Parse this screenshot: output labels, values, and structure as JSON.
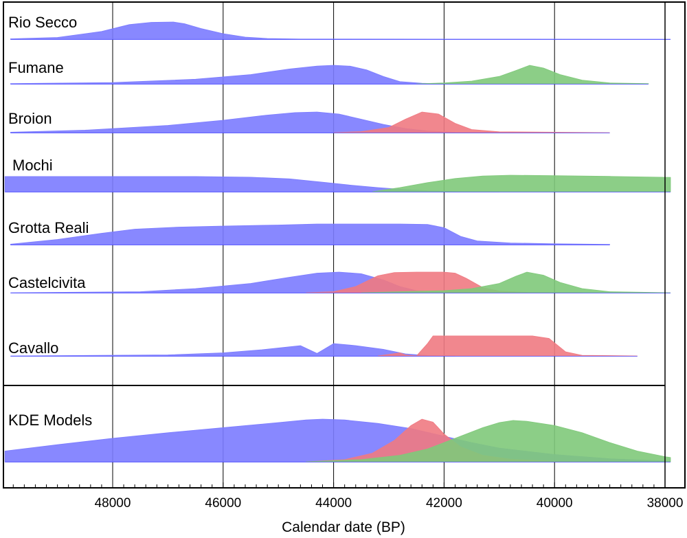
{
  "chart_data": {
    "type": "area",
    "xlabel": "Calendar date (BP)",
    "x_reversed": true,
    "xlim": [
      49950,
      37850
    ],
    "x_ticks": [
      48000,
      46000,
      44000,
      42000,
      40000,
      38000
    ],
    "x_tick_labels": [
      "48000",
      "46000",
      "44000",
      "42000",
      "40000",
      "38000"
    ],
    "gridlines": "vertical at major ticks",
    "colors": {
      "blue": "#7b7bff",
      "red": "#f07a82",
      "green": "#7fc97a"
    },
    "panels": [
      {
        "label": "Rio Secco",
        "series": [
          {
            "color": "blue",
            "points": [
              [
                49850,
                0.02
              ],
              [
                49000,
                0.1
              ],
              [
                48200,
                0.45
              ],
              [
                47700,
                0.85
              ],
              [
                47300,
                0.98
              ],
              [
                46900,
                1.0
              ],
              [
                46700,
                0.9
              ],
              [
                46400,
                0.62
              ],
              [
                46000,
                0.32
              ],
              [
                45600,
                0.12
              ],
              [
                45200,
                0.04
              ],
              [
                44600,
                0.01
              ],
              [
                37900,
                0.0
              ]
            ]
          }
        ]
      },
      {
        "label": "Fumane",
        "series": [
          {
            "color": "blue",
            "points": [
              [
                49850,
                0.01
              ],
              [
                48000,
                0.07
              ],
              [
                46500,
                0.25
              ],
              [
                45500,
                0.5
              ],
              [
                44800,
                0.8
              ],
              [
                44300,
                0.96
              ],
              [
                44000,
                1.0
              ],
              [
                43700,
                0.95
              ],
              [
                43400,
                0.75
              ],
              [
                43100,
                0.4
              ],
              [
                42800,
                0.12
              ],
              [
                42400,
                0.03
              ],
              [
                42000,
                0.0
              ]
            ]
          },
          {
            "color": "green",
            "points": [
              [
                42500,
                0.0
              ],
              [
                42000,
                0.05
              ],
              [
                41500,
                0.15
              ],
              [
                41000,
                0.4
              ],
              [
                40700,
                0.72
              ],
              [
                40450,
                1.0
              ],
              [
                40200,
                0.85
              ],
              [
                39900,
                0.5
              ],
              [
                39500,
                0.2
              ],
              [
                39000,
                0.05
              ],
              [
                38300,
                0.01
              ]
            ]
          }
        ]
      },
      {
        "label": "Broion",
        "series": [
          {
            "color": "blue",
            "points": [
              [
                49850,
                0.02
              ],
              [
                48500,
                0.12
              ],
              [
                47000,
                0.35
              ],
              [
                46000,
                0.6
              ],
              [
                45200,
                0.85
              ],
              [
                44700,
                0.97
              ],
              [
                44300,
                1.0
              ],
              [
                43900,
                0.9
              ],
              [
                43500,
                0.65
              ],
              [
                43100,
                0.4
              ],
              [
                42700,
                0.2
              ],
              [
                42300,
                0.08
              ],
              [
                41800,
                0.02
              ],
              [
                40000,
                0.0
              ]
            ]
          },
          {
            "color": "red",
            "points": [
              [
                44000,
                0.0
              ],
              [
                43500,
                0.05
              ],
              [
                43000,
                0.25
              ],
              [
                42700,
                0.65
              ],
              [
                42400,
                1.0
              ],
              [
                42100,
                0.9
              ],
              [
                41800,
                0.45
              ],
              [
                41500,
                0.15
              ],
              [
                41000,
                0.04
              ],
              [
                39000,
                0.0
              ]
            ]
          }
        ]
      },
      {
        "label": "Mochi",
        "series": [
          {
            "color": "blue",
            "points": [
              [
                49950,
                0.92
              ],
              [
                48000,
                0.92
              ],
              [
                46500,
                0.92
              ],
              [
                45500,
                0.88
              ],
              [
                44800,
                0.78
              ],
              [
                44200,
                0.58
              ],
              [
                43700,
                0.4
              ],
              [
                43200,
                0.25
              ],
              [
                42800,
                0.15
              ],
              [
                42300,
                0.06
              ],
              [
                41700,
                0.01
              ],
              [
                41000,
                0.0
              ]
            ]
          },
          {
            "color": "green",
            "points": [
              [
                43300,
                0.0
              ],
              [
                42800,
                0.25
              ],
              [
                42300,
                0.55
              ],
              [
                41800,
                0.8
              ],
              [
                41300,
                0.95
              ],
              [
                40800,
                1.0
              ],
              [
                40000,
                0.97
              ],
              [
                39000,
                0.93
              ],
              [
                37900,
                0.87
              ]
            ]
          }
        ]
      },
      {
        "label": "Grotta Reali",
        "series": [
          {
            "color": "blue",
            "points": [
              [
                49850,
                0.02
              ],
              [
                49000,
                0.25
              ],
              [
                48200,
                0.55
              ],
              [
                47600,
                0.75
              ],
              [
                46800,
                0.85
              ],
              [
                46000,
                0.9
              ],
              [
                45000,
                0.95
              ],
              [
                44300,
                1.0
              ],
              [
                42800,
                1.0
              ],
              [
                42300,
                0.98
              ],
              [
                42000,
                0.82
              ],
              [
                41700,
                0.4
              ],
              [
                41400,
                0.18
              ],
              [
                40800,
                0.08
              ],
              [
                40000,
                0.04
              ],
              [
                39000,
                0.01
              ]
            ]
          }
        ]
      },
      {
        "label": "Castelcivita",
        "series": [
          {
            "color": "blue",
            "points": [
              [
                49850,
                0.0
              ],
              [
                47500,
                0.05
              ],
              [
                46500,
                0.2
              ],
              [
                45500,
                0.45
              ],
              [
                44800,
                0.75
              ],
              [
                44300,
                0.95
              ],
              [
                43900,
                1.0
              ],
              [
                43500,
                0.92
              ],
              [
                43100,
                0.62
              ],
              [
                42800,
                0.3
              ],
              [
                42500,
                0.1
              ],
              [
                42000,
                0.02
              ],
              [
                41500,
                0.0
              ]
            ]
          },
          {
            "color": "red",
            "points": [
              [
                44500,
                0.0
              ],
              [
                44000,
                0.05
              ],
              [
                43600,
                0.3
              ],
              [
                43200,
                0.82
              ],
              [
                42900,
                0.98
              ],
              [
                42500,
                1.0
              ],
              [
                42000,
                1.0
              ],
              [
                41800,
                0.95
              ],
              [
                41600,
                0.7
              ],
              [
                41300,
                0.25
              ],
              [
                41000,
                0.08
              ],
              [
                40500,
                0.02
              ],
              [
                39500,
                0.0
              ]
            ]
          },
          {
            "color": "green",
            "points": [
              [
                43500,
                0.0
              ],
              [
                42800,
                0.05
              ],
              [
                42000,
                0.1
              ],
              [
                41500,
                0.2
              ],
              [
                41000,
                0.45
              ],
              [
                40700,
                0.8
              ],
              [
                40500,
                1.0
              ],
              [
                40200,
                0.85
              ],
              [
                39900,
                0.5
              ],
              [
                39500,
                0.2
              ],
              [
                39000,
                0.05
              ],
              [
                37900,
                0.0
              ]
            ]
          }
        ]
      },
      {
        "label": "Cavallo",
        "series": [
          {
            "color": "blue",
            "points": [
              [
                49850,
                0.0
              ],
              [
                47000,
                0.05
              ],
              [
                46000,
                0.15
              ],
              [
                45300,
                0.3
              ],
              [
                44600,
                0.5
              ],
              [
                44300,
                0.12
              ],
              [
                44000,
                0.6
              ],
              [
                43600,
                0.5
              ],
              [
                43100,
                0.32
              ],
              [
                42700,
                0.1
              ],
              [
                42300,
                0.02
              ],
              [
                41800,
                0.0
              ]
            ]
          },
          {
            "color": "red",
            "points": [
              [
                43200,
                0.0
              ],
              [
                42800,
                0.15
              ],
              [
                42700,
                0.05
              ],
              [
                42500,
                0.0
              ],
              [
                42300,
                0.6
              ],
              [
                42200,
                0.97
              ],
              [
                41500,
                0.97
              ],
              [
                40400,
                0.97
              ],
              [
                40100,
                0.85
              ],
              [
                39800,
                0.2
              ],
              [
                39500,
                0.03
              ],
              [
                38500,
                0.0
              ]
            ]
          }
        ]
      },
      {
        "label": "KDE Models",
        "series": [
          {
            "color": "blue",
            "points": [
              [
                49950,
                0.25
              ],
              [
                49000,
                0.4
              ],
              [
                48000,
                0.55
              ],
              [
                47000,
                0.68
              ],
              [
                46000,
                0.8
              ],
              [
                45000,
                0.92
              ],
              [
                44500,
                0.98
              ],
              [
                44200,
                1.0
              ],
              [
                43800,
                0.98
              ],
              [
                43200,
                0.9
              ],
              [
                42600,
                0.78
              ],
              [
                42000,
                0.6
              ],
              [
                41500,
                0.45
              ],
              [
                41000,
                0.32
              ],
              [
                40000,
                0.17
              ],
              [
                39000,
                0.07
              ],
              [
                38000,
                0.02
              ]
            ]
          },
          {
            "color": "red",
            "points": [
              [
                44500,
                0.0
              ],
              [
                43800,
                0.05
              ],
              [
                43300,
                0.2
              ],
              [
                42900,
                0.5
              ],
              [
                42600,
                0.85
              ],
              [
                42400,
                1.0
              ],
              [
                42200,
                0.93
              ],
              [
                42000,
                0.65
              ],
              [
                41700,
                0.35
              ],
              [
                41300,
                0.15
              ],
              [
                40800,
                0.06
              ],
              [
                40000,
                0.01
              ],
              [
                39000,
                0.0
              ]
            ]
          },
          {
            "color": "green",
            "points": [
              [
                44500,
                0.0
              ],
              [
                43500,
                0.05
              ],
              [
                42800,
                0.15
              ],
              [
                42300,
                0.3
              ],
              [
                41800,
                0.55
              ],
              [
                41300,
                0.8
              ],
              [
                41000,
                0.92
              ],
              [
                40750,
                0.97
              ],
              [
                40500,
                0.95
              ],
              [
                40000,
                0.85
              ],
              [
                39500,
                0.68
              ],
              [
                39000,
                0.45
              ],
              [
                38500,
                0.25
              ],
              [
                38000,
                0.12
              ],
              [
                37900,
                0.1
              ]
            ]
          }
        ]
      }
    ]
  }
}
